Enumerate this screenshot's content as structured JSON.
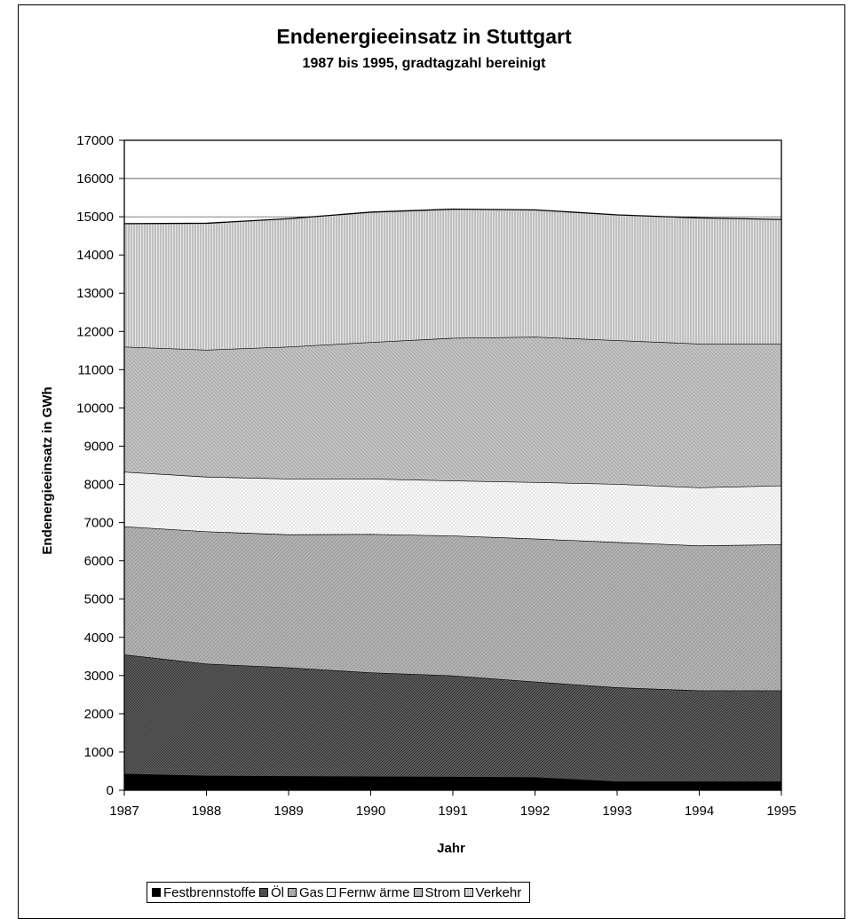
{
  "chart_data": {
    "type": "area",
    "stacked": true,
    "title": "Endenergieeinsatz in Stuttgart",
    "subtitle": "1987 bis 1995, gradtagzahl bereinigt",
    "xlabel": "Jahr",
    "ylabel": "Endenergieeinsatz in GWh",
    "x": [
      1987,
      1988,
      1989,
      1990,
      1991,
      1992,
      1993,
      1994,
      1995
    ],
    "x_tick_labels": [
      "1987",
      "1988",
      "1989",
      "1990",
      "1991",
      "1992",
      "1993",
      "1994",
      "1995"
    ],
    "ylim": [
      0,
      17000
    ],
    "y_ticks": [
      0,
      1000,
      2000,
      3000,
      4000,
      5000,
      6000,
      7000,
      8000,
      9000,
      10000,
      11000,
      12000,
      13000,
      14000,
      15000,
      16000,
      17000
    ],
    "grid": "horizontal",
    "legend_position": "bottom",
    "series": [
      {
        "name": "Festbrennstoffe",
        "values": [
          430,
          380,
          370,
          360,
          350,
          340,
          230,
          230,
          230
        ],
        "color": "#000000",
        "pattern": "solid"
      },
      {
        "name": "Öl",
        "values": [
          3120,
          2930,
          2840,
          2720,
          2650,
          2500,
          2460,
          2380,
          2380
        ],
        "color": "#333333",
        "pattern": "dense-diagonal"
      },
      {
        "name": "Gas",
        "values": [
          3350,
          3460,
          3480,
          3620,
          3660,
          3740,
          3800,
          3790,
          3820
        ],
        "color": "#999999",
        "pattern": "diagonal"
      },
      {
        "name": "Fernw ärme",
        "values": [
          1430,
          1430,
          1460,
          1450,
          1440,
          1480,
          1520,
          1520,
          1540
        ],
        "color": "#f0f0f0",
        "pattern": "dots"
      },
      {
        "name": "Strom",
        "values": [
          3270,
          3320,
          3450,
          3570,
          3730,
          3800,
          3760,
          3760,
          3710
        ],
        "color": "#bbbbbb",
        "pattern": "diagonal"
      },
      {
        "name": "Verkehr",
        "values": [
          3220,
          3310,
          3350,
          3400,
          3370,
          3320,
          3280,
          3290,
          3250
        ],
        "color": "#d4d4d4",
        "pattern": "vertical"
      }
    ]
  }
}
